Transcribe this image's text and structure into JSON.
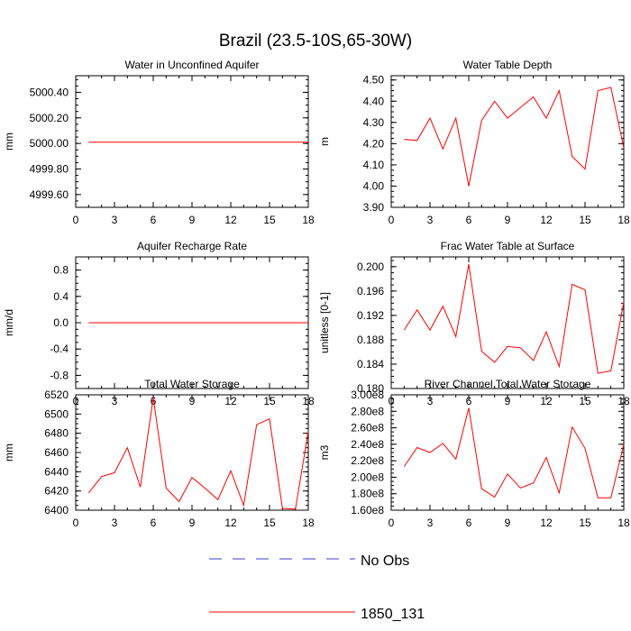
{
  "figure": {
    "title": "Brazil (23.5-10S,65-30W)"
  },
  "legend": {
    "entries": [
      {
        "label": "No Obs",
        "color": "#3c3cc8",
        "style": "dashed"
      },
      {
        "label": "1850_131",
        "color": "#ff0000",
        "style": "solid"
      }
    ],
    "placement": "bottom-center"
  },
  "chart_data": [
    {
      "type": "line",
      "title": "Water in Unconfined Aquifer",
      "ylabel": "mm",
      "xlim": [
        0,
        18
      ],
      "ylim": [
        4999.5,
        5000.53
      ],
      "xticks": [
        0,
        3,
        6,
        9,
        12,
        15,
        18
      ],
      "yticks": [
        4999.6,
        4999.8,
        5000.0,
        5000.2,
        5000.4
      ],
      "ytick_labels": [
        "4999.60",
        "4999.80",
        "5000.00",
        "5000.20",
        "5000.40"
      ],
      "series": [
        {
          "name": "1850_131",
          "color": "#ff0000",
          "x": [
            1,
            18
          ],
          "y": [
            5000.01,
            5000.01
          ]
        }
      ]
    },
    {
      "type": "line",
      "title": "Water Table Depth",
      "ylabel": "m",
      "xlim": [
        0,
        18
      ],
      "ylim": [
        3.9,
        4.52
      ],
      "xticks": [
        0,
        3,
        6,
        9,
        12,
        15,
        18
      ],
      "yticks": [
        3.9,
        4.0,
        4.1,
        4.2,
        4.3,
        4.4,
        4.5
      ],
      "ytick_labels": [
        "3.90",
        "4.00",
        "4.10",
        "4.20",
        "4.30",
        "4.40",
        "4.50"
      ],
      "series": [
        {
          "name": "1850_131",
          "color": "#ff0000",
          "x": [
            1,
            2,
            3,
            4,
            5,
            6,
            7,
            8,
            9,
            10,
            11,
            12,
            13,
            14,
            15,
            16,
            17,
            18
          ],
          "y": [
            4.22,
            4.215,
            4.32,
            4.175,
            4.32,
            4.0,
            4.31,
            4.4,
            4.32,
            4.37,
            4.42,
            4.32,
            4.45,
            4.14,
            4.08,
            4.45,
            4.465,
            4.18
          ]
        }
      ]
    },
    {
      "type": "line",
      "title": "Aquifer Recharge Rate",
      "ylabel": "mm/d",
      "xlim": [
        0,
        18
      ],
      "ylim": [
        -1.0,
        1.0
      ],
      "xticks": [
        0,
        3,
        6,
        9,
        12,
        15,
        18
      ],
      "yticks": [
        -0.8,
        -0.4,
        0.0,
        0.4,
        0.8
      ],
      "ytick_labels": [
        "-0.8",
        "-0.4",
        "0.0",
        "0.4",
        "0.8"
      ],
      "series": [
        {
          "name": "1850_131",
          "color": "#ff0000",
          "x": [
            1,
            18
          ],
          "y": [
            0.0,
            0.0
          ]
        }
      ]
    },
    {
      "type": "line",
      "title": "Frac Water Table at Surface",
      "ylabel": "unitless [0-1]",
      "xlim": [
        0,
        18
      ],
      "ylim": [
        0.18,
        0.2016
      ],
      "xticks": [
        0,
        3,
        6,
        9,
        12,
        15,
        18
      ],
      "yticks": [
        0.18,
        0.184,
        0.188,
        0.192,
        0.196,
        0.2
      ],
      "ytick_labels": [
        "0.180",
        "0.184",
        "0.188",
        "0.192",
        "0.196",
        "0.200"
      ],
      "series": [
        {
          "name": "1850_131",
          "color": "#ff0000",
          "x": [
            1,
            2,
            3,
            4,
            5,
            6,
            7,
            8,
            9,
            10,
            11,
            12,
            13,
            14,
            15,
            16,
            17,
            18
          ],
          "y": [
            0.1896,
            0.1929,
            0.1896,
            0.1935,
            0.1885,
            0.2004,
            0.1861,
            0.1843,
            0.1869,
            0.1867,
            0.1846,
            0.1893,
            0.1836,
            0.1971,
            0.1962,
            0.1825,
            0.1829,
            0.1942
          ]
        }
      ]
    },
    {
      "type": "line",
      "title": "Total Water Storage",
      "ylabel": "mm",
      "xlim": [
        0,
        18
      ],
      "ylim": [
        6400,
        6520
      ],
      "xticks": [
        0,
        3,
        6,
        9,
        12,
        15,
        18
      ],
      "yticks": [
        6400,
        6420,
        6440,
        6460,
        6480,
        6500,
        6520
      ],
      "ytick_labels": [
        "6400",
        "6420",
        "6440",
        "6460",
        "6480",
        "6500",
        "6520"
      ],
      "series": [
        {
          "name": "1850_131",
          "color": "#ff0000",
          "x": [
            1,
            2,
            3,
            4,
            5,
            6,
            7,
            8,
            9,
            10,
            11,
            12,
            13,
            14,
            15,
            16,
            17,
            18
          ],
          "y": [
            6418,
            6435,
            6439,
            6465,
            6424,
            6517,
            6423,
            6409,
            6434,
            6423,
            6411,
            6441,
            6405,
            6489,
            6495,
            6402,
            6401,
            6482
          ]
        }
      ]
    },
    {
      "type": "line",
      "title": "River Channel Total Water Storage",
      "ylabel": "m3",
      "xlim": [
        0,
        18
      ],
      "ylim": [
        160000000,
        300000000
      ],
      "xticks": [
        0,
        3,
        6,
        9,
        12,
        15,
        18
      ],
      "yticks": [
        160000000,
        180000000,
        200000000,
        220000000,
        240000000,
        260000000,
        280000000,
        300000000
      ],
      "ytick_labels": [
        "1.60e8",
        "1.80e8",
        "2.00e8",
        "2.20e8",
        "2.40e8",
        "2.60e8",
        "2.80e8",
        "3.00e8"
      ],
      "series": [
        {
          "name": "1850_131",
          "color": "#ff0000",
          "x": [
            1,
            2,
            3,
            4,
            5,
            6,
            7,
            8,
            9,
            10,
            11,
            12,
            13,
            14,
            15,
            16,
            17,
            18
          ],
          "y": [
            213000000,
            236000000,
            230000000,
            241000000,
            222000000,
            284000000,
            186000000,
            176000000,
            204000000,
            187000000,
            193000000,
            224000000,
            181000000,
            261000000,
            235000000,
            175000000,
            175000000,
            240000000
          ]
        }
      ]
    }
  ]
}
